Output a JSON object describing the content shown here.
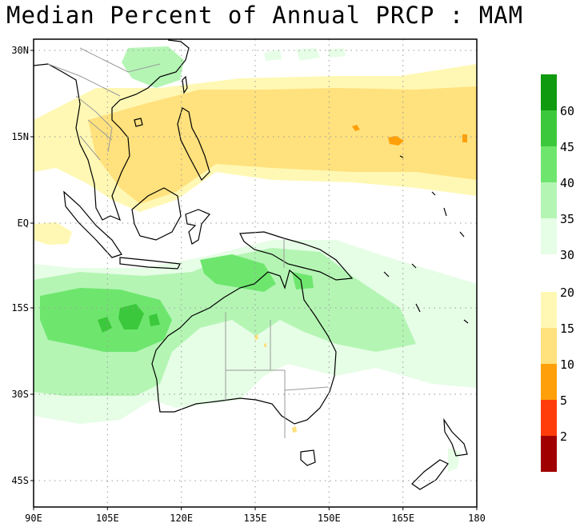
{
  "title": "Median Percent of Annual PRCP  :  MAM",
  "map": {
    "lon_range": [
      90,
      180
    ],
    "lat_range": [
      -50,
      33
    ],
    "lon_ticks": [
      {
        "value": 90,
        "label": "90E"
      },
      {
        "value": 105,
        "label": "105E"
      },
      {
        "value": 120,
        "label": "120E"
      },
      {
        "value": 135,
        "label": "135E"
      },
      {
        "value": 150,
        "label": "150E"
      },
      {
        "value": 165,
        "label": "165E"
      },
      {
        "value": 180,
        "label": "180"
      }
    ],
    "lat_ticks": [
      {
        "value": 30,
        "label": "30N"
      },
      {
        "value": 15,
        "label": "15N"
      },
      {
        "value": 0,
        "label": "EQ"
      },
      {
        "value": -15,
        "label": "15S"
      },
      {
        "value": -30,
        "label": "30S"
      },
      {
        "value": -45,
        "label": "45S"
      }
    ],
    "grid": "dotted"
  },
  "colorbar": {
    "upper": {
      "labels": [
        "60",
        "45",
        "40",
        "35",
        "30"
      ],
      "colors": [
        "#0f9a0f",
        "#3cc83c",
        "#6ee66e",
        "#b4f5b4",
        "#e6fde6"
      ]
    },
    "lower": {
      "labels": [
        "20",
        "15",
        "10",
        "5",
        "2"
      ],
      "colors": [
        "#fff8b4",
        "#ffe17d",
        "#ffa00a",
        "#ff3c0a",
        "#a00000"
      ]
    }
  },
  "colors": {
    "c30": "#e6fde6",
    "c35": "#b4f5b4",
    "c40": "#6ee66e",
    "c45": "#3cc83c",
    "c15": "#fff8b4",
    "c10": "#ffe17d",
    "c5": "#ffa00a"
  }
}
